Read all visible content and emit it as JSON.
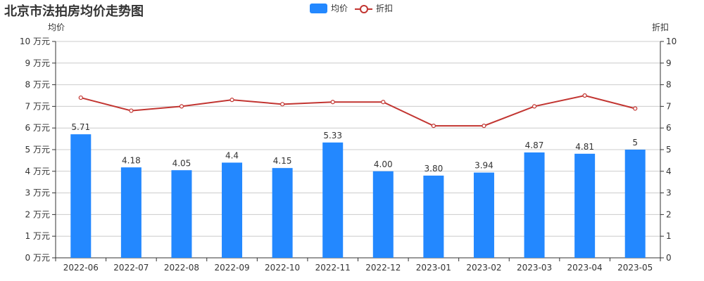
{
  "title": "北京市法拍房均价走势图",
  "legend": [
    {
      "label": "均价",
      "type": "bar",
      "color": "#2388ff"
    },
    {
      "label": "折扣",
      "type": "line",
      "color": "#c23531"
    }
  ],
  "axes": {
    "left_name": "均价",
    "right_name": "折扣",
    "left_ticks": [
      "0 万元",
      "1 万元",
      "2 万元",
      "3 万元",
      "4 万元",
      "5 万元",
      "6 万元",
      "7 万元",
      "8 万元",
      "9 万元",
      "10 万元"
    ],
    "right_ticks": [
      "0",
      "1",
      "2",
      "3",
      "4",
      "5",
      "6",
      "7",
      "8",
      "9",
      "10"
    ]
  },
  "chart_data": {
    "type": "bar",
    "title": "北京市法拍房均价走势图",
    "categories": [
      "2022-06",
      "2022-07",
      "2022-08",
      "2022-09",
      "2022-10",
      "2022-11",
      "2022-12",
      "2023-01",
      "2023-02",
      "2023-03",
      "2023-04",
      "2023-05"
    ],
    "series": [
      {
        "name": "均价",
        "type": "bar",
        "axis": "left",
        "unit": "万元",
        "values": [
          5.71,
          4.18,
          4.05,
          4.4,
          4.15,
          5.33,
          4.0,
          3.8,
          3.94,
          4.87,
          4.81,
          5
        ],
        "labels": [
          "5.71",
          "4.18",
          "4.05",
          "4.4",
          "4.15",
          "5.33",
          "4.00",
          "3.80",
          "3.94",
          "4.87",
          "4.81",
          "5"
        ]
      },
      {
        "name": "折扣",
        "type": "line",
        "axis": "right",
        "values": [
          7.4,
          6.8,
          7.0,
          7.3,
          7.1,
          7.2,
          7.2,
          6.1,
          6.1,
          7.0,
          7.5,
          6.9
        ]
      }
    ],
    "xlabel": "",
    "ylabel": "均价",
    "ylabel_right": "折扣",
    "ylim": [
      0,
      10
    ],
    "ylim_right": [
      0,
      10
    ],
    "grid": true,
    "legend_position": "top-center"
  },
  "colors": {
    "bar": "#2388ff",
    "line": "#c23531",
    "grid": "#cccccc",
    "axis": "#333333",
    "text": "#333333"
  }
}
